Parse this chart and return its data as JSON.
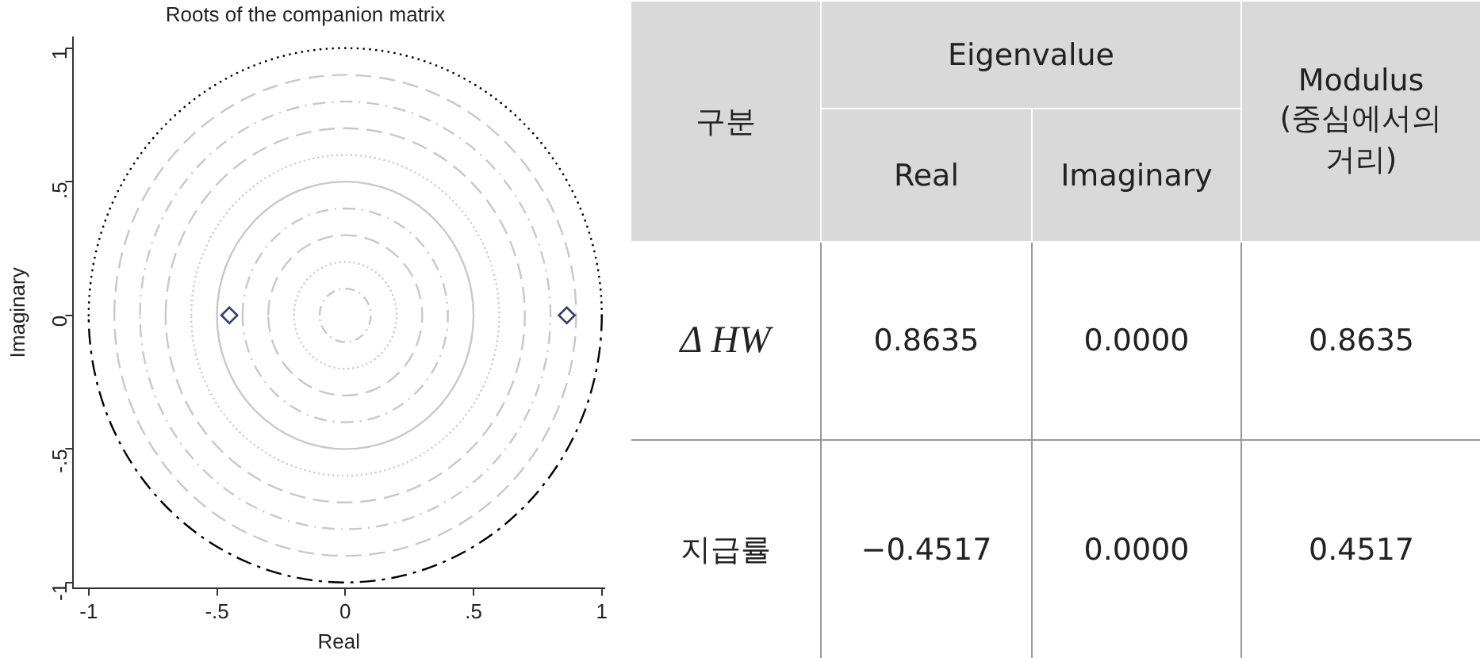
{
  "chart_data": [
    {
      "type": "scatter",
      "title": "Roots of the companion matrix",
      "xlabel": "Real",
      "ylabel": "Imaginary",
      "xlim": [
        -1.06,
        1.01
      ],
      "ylim": [
        -1.02,
        1.04
      ],
      "xticks": [
        -1,
        {
          "value": -0.5,
          "label": "-.5"
        },
        0,
        {
          "value": 0.5,
          "label": ".5"
        },
        1
      ],
      "yticks": [
        -1,
        {
          "value": -0.5,
          "label": "-.5"
        },
        0,
        {
          "value": 0.5,
          "label": ".5"
        },
        1
      ],
      "legend": false,
      "series": [
        {
          "type": "scatter",
          "color": "#2e3f6e",
          "marker": "diamond",
          "x": [
            0.8635,
            -0.4517
          ],
          "values": [
            0,
            0
          ]
        }
      ]
    },
    {
      "type": "other",
      "annotations": [
        "구분",
        "Eigenvalue",
        "Modulus\n(중심에서의\n거리)",
        "Real",
        "Imaginary",
        "Δ HW",
        "0.8635",
        "0.0000",
        "0.8635",
        "지급률",
        "−0.4517",
        "0.0000",
        "0.4517"
      ]
    }
  ]
}
